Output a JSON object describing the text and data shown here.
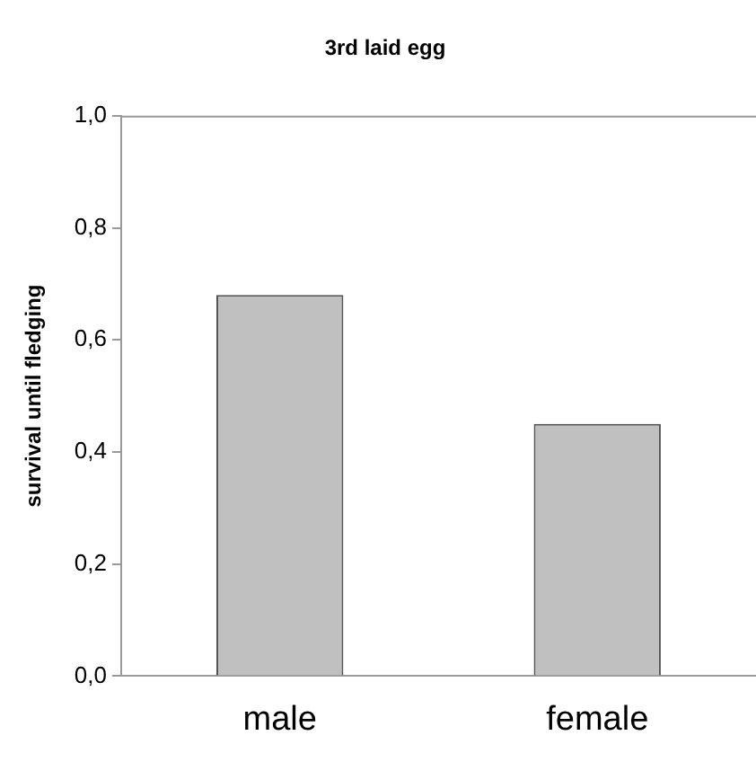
{
  "chart_data": {
    "type": "bar",
    "title": "3rd laid egg",
    "ylabel": "survival until fledging",
    "categories": [
      "male",
      "female"
    ],
    "values": [
      0.68,
      0.45
    ],
    "color": "#c0c0c0",
    "ylim": [
      0,
      1
    ],
    "yticks": [
      {
        "value": 0,
        "label": "0,0"
      },
      {
        "value": 0.2,
        "label": "0,2"
      },
      {
        "value": 0.4,
        "label": "0,4"
      },
      {
        "value": 0.6,
        "label": "0,6"
      },
      {
        "value": 0.8,
        "label": "0,8"
      },
      {
        "value": 1,
        "label": "1,0"
      }
    ],
    "grid": false
  }
}
